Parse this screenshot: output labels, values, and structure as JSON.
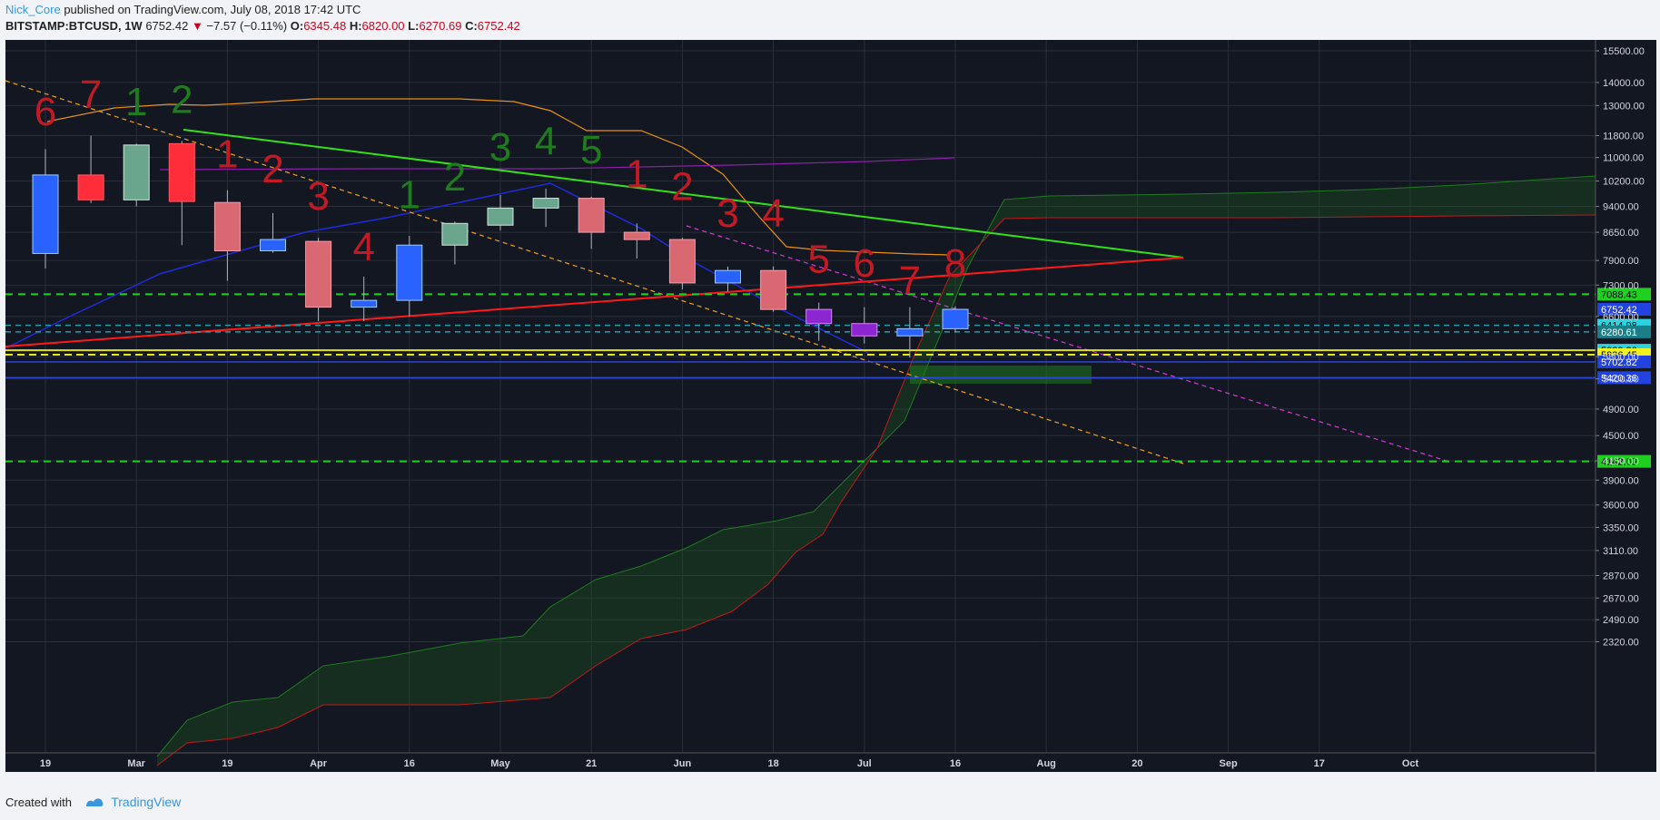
{
  "header": {
    "author": "Nick_Core",
    "published_text": "published on TradingView.com, July 08, 2018 17:42 UTC",
    "symbol": "BITSTAMP:BTCUSD, 1W",
    "last": "6752.42",
    "down_arrow": "▼",
    "change": "−7.57 (−0.11%)",
    "o_label": "O:",
    "o_value": "6345.48",
    "h_label": "H:",
    "h_value": "6820.00",
    "l_label": "L:",
    "l_value": "6270.69",
    "c_label": "C:",
    "c_value": "6752.42"
  },
  "footer": {
    "created_with": "Created with",
    "brand": "TradingView"
  },
  "colors": {
    "background": "#131722",
    "grid": "#2a2e39",
    "bull": "#2962ff",
    "bear": "#ff2d3a",
    "bull_faded": "#6aa58e",
    "bear_faded": "#d96873",
    "td_red": "#c21a25",
    "td_green": "#1e7b1e",
    "purple": "#8b26d0",
    "green_line": "#33e01a",
    "red_line": "#ff1a1a",
    "orange": "#f5a623",
    "magenta": "#d33ad3"
  },
  "chart_data": {
    "type": "candlestick",
    "scale": "log",
    "ylim": [
      2200,
      16000
    ],
    "x_ticks": [
      "19",
      "Mar",
      "19",
      "Apr",
      "16",
      "May",
      "21",
      "Jun",
      "18",
      "Jul",
      "16",
      "Aug",
      "20",
      "Sep",
      "17",
      "Oct"
    ],
    "y_ticks": [
      15500,
      14000,
      13000,
      11800,
      11000,
      10200,
      9400,
      8650,
      7900,
      7300,
      6600,
      5800,
      5400,
      4900,
      4500,
      4150,
      3900,
      3600,
      3350,
      3110,
      2870,
      2670,
      2490,
      2320
    ],
    "candles": [
      {
        "o": 8080,
        "h": 11300,
        "l": 7700,
        "c": 10400,
        "style": "bull"
      },
      {
        "o": 10400,
        "h": 11800,
        "l": 9500,
        "c": 9600,
        "style": "bear"
      },
      {
        "o": 9600,
        "h": 11500,
        "l": 9400,
        "c": 11450,
        "style": "bull_faded"
      },
      {
        "o": 11500,
        "h": 11600,
        "l": 8300,
        "c": 9550,
        "style": "bear"
      },
      {
        "o": 9520,
        "h": 9900,
        "l": 7400,
        "c": 8150,
        "style": "bear_faded"
      },
      {
        "o": 8150,
        "h": 9200,
        "l": 8100,
        "c": 8450,
        "style": "bull"
      },
      {
        "o": 8400,
        "h": 8500,
        "l": 6500,
        "c": 6800,
        "style": "bear_faded"
      },
      {
        "o": 6800,
        "h": 7500,
        "l": 6500,
        "c": 6950,
        "style": "bull"
      },
      {
        "o": 6950,
        "h": 8550,
        "l": 6600,
        "c": 8300,
        "style": "bull"
      },
      {
        "o": 8300,
        "h": 8950,
        "l": 7800,
        "c": 8900,
        "style": "bull_faded"
      },
      {
        "o": 8850,
        "h": 9750,
        "l": 8700,
        "c": 9350,
        "style": "bull_faded"
      },
      {
        "o": 9350,
        "h": 9950,
        "l": 8800,
        "c": 9650,
        "style": "bull_faded"
      },
      {
        "o": 9650,
        "h": 9700,
        "l": 8200,
        "c": 8650,
        "style": "bear_faded"
      },
      {
        "o": 8650,
        "h": 8900,
        "l": 7950,
        "c": 8450,
        "style": "bear_faded"
      },
      {
        "o": 8450,
        "h": 8500,
        "l": 7200,
        "c": 7350,
        "style": "bear_faded"
      },
      {
        "o": 7350,
        "h": 7750,
        "l": 7150,
        "c": 7650,
        "style": "bull"
      },
      {
        "o": 7650,
        "h": 7750,
        "l": 6700,
        "c": 6750,
        "style": "bear_faded"
      },
      {
        "o": 6750,
        "h": 6900,
        "l": 6100,
        "c": 6450,
        "style": "purple"
      },
      {
        "o": 6450,
        "h": 6800,
        "l": 6050,
        "c": 6200,
        "style": "purple"
      },
      {
        "o": 6200,
        "h": 6800,
        "l": 5780,
        "c": 6345,
        "style": "bull"
      },
      {
        "o": 6345,
        "h": 6820,
        "l": 6270,
        "c": 6752,
        "style": "bull"
      }
    ],
    "td_counts": [
      {
        "i": 0,
        "label": "6",
        "color": "red",
        "price": 12200
      },
      {
        "i": 1,
        "label": "7",
        "color": "red",
        "price": 12900
      },
      {
        "i": 2,
        "label": "1",
        "color": "green",
        "price": 12600
      },
      {
        "i": 3,
        "label": "2",
        "color": "green",
        "price": 12700
      },
      {
        "i": 4,
        "label": "1",
        "color": "red",
        "price": 10650
      },
      {
        "i": 5,
        "label": "2",
        "color": "red",
        "price": 10150
      },
      {
        "i": 6,
        "label": "3",
        "color": "red",
        "price": 9300
      },
      {
        "i": 7,
        "label": "4",
        "color": "red",
        "price": 7900
      },
      {
        "i": 8,
        "label": "1",
        "color": "green",
        "price": 9350
      },
      {
        "i": 9,
        "label": "2",
        "color": "green",
        "price": 9900
      },
      {
        "i": 10,
        "label": "3",
        "color": "green",
        "price": 10900
      },
      {
        "i": 11,
        "label": "4",
        "color": "green",
        "price": 11100
      },
      {
        "i": 12,
        "label": "5",
        "color": "green",
        "price": 10800
      },
      {
        "i": 13,
        "label": "1",
        "color": "red",
        "price": 10000
      },
      {
        "i": 14,
        "label": "2",
        "color": "red",
        "price": 9600
      },
      {
        "i": 15,
        "label": "3",
        "color": "red",
        "price": 8800
      },
      {
        "i": 16,
        "label": "4",
        "color": "red",
        "price": 8800
      },
      {
        "i": 17,
        "label": "5",
        "color": "red",
        "price": 7600
      },
      {
        "i": 18,
        "label": "6",
        "color": "red",
        "price": 7500
      },
      {
        "i": 19,
        "label": "7",
        "color": "red",
        "price": 7100
      },
      {
        "i": 20,
        "label": "8",
        "color": "red",
        "price": 7500
      }
    ],
    "horizontal_levels": [
      {
        "price": 7088.43,
        "label": "7088.43",
        "line": "#1fd11f",
        "box": "#20d020",
        "text": "#000000",
        "dash": "8,6",
        "width": 2
      },
      {
        "price": 6414.98,
        "label": "6414.98",
        "line": "#20a0a8",
        "box": "#2cd3e0",
        "text": "#000000",
        "dash": "6,5",
        "width": 1.5
      },
      {
        "price": 6280.61,
        "label": "6280.61",
        "line": "#20a0a8",
        "box": "#1a7f88",
        "text": "#ffffff",
        "dash": "6,5",
        "width": 1.5
      },
      {
        "price": 5920.86,
        "label": "5920.86",
        "line": "#e0e020",
        "box": "#2cd3e0",
        "text": "#000000",
        "dash": "0",
        "width": 2
      },
      {
        "price": 5836.45,
        "label": "5836.45",
        "line": "#e8e81a",
        "box": "#f2f21a",
        "text": "#000000",
        "dash": "8,5",
        "width": 2
      },
      {
        "price": 5702.82,
        "label": "5702.82",
        "line": "#2c44d8",
        "box": "#2243e0",
        "text": "#ffffff",
        "dash": "0",
        "width": 1.5
      },
      {
        "price": 5420.36,
        "label": "5420.36",
        "line": "#2c44d8",
        "box": "#2243e0",
        "text": "#ffffff",
        "dash": "0",
        "width": 1.5
      },
      {
        "price": 4142.09,
        "label": "4142.09",
        "line": "#1fd11f",
        "box": "#20d020",
        "text": "#000000",
        "dash": "8,6",
        "width": 2
      }
    ],
    "last_price_label": {
      "price": 6752.42,
      "label": "6752.42"
    }
  }
}
